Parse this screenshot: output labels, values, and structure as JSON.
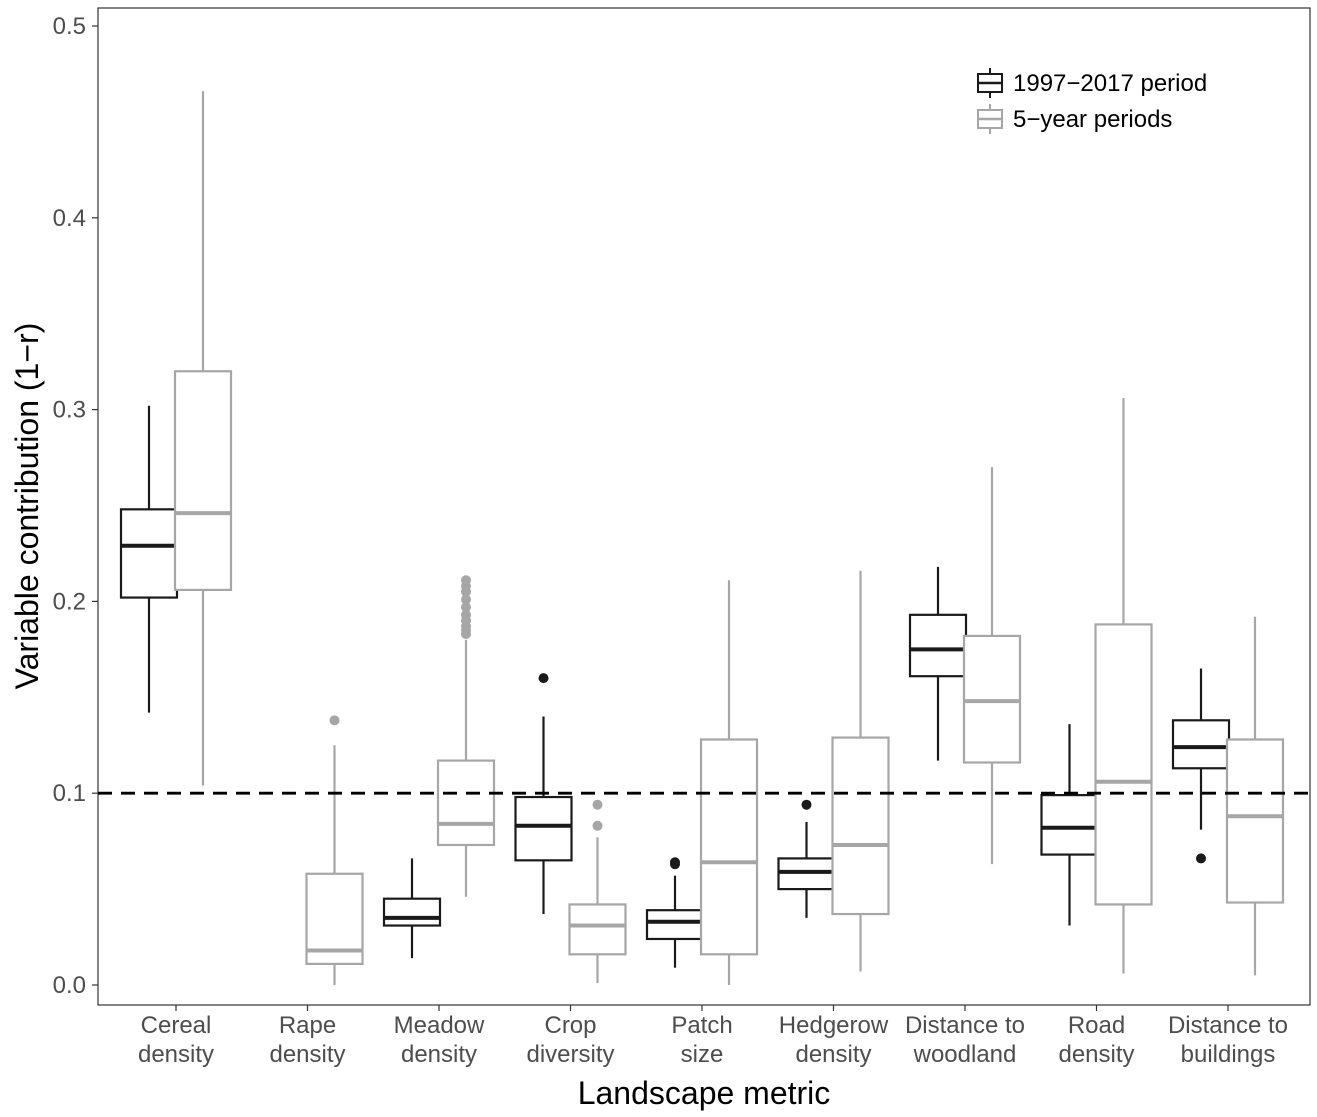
{
  "chart_data": {
    "type": "boxplot",
    "xlabel": "Landscape metric",
    "ylabel": "Variable contribution (1−r)",
    "ylim": [
      -0.01,
      0.51
    ],
    "yticks": [
      "0.0",
      "0.1",
      "0.2",
      "0.3",
      "0.4",
      "0.5"
    ],
    "grid": false,
    "legend_position": "top-right",
    "reference_line": {
      "y": 0.1,
      "style": "dashed",
      "color": "#000000"
    },
    "categories": [
      [
        "Cereal",
        "density"
      ],
      [
        "Rape",
        "density"
      ],
      [
        "Meadow",
        "density"
      ],
      [
        "Crop",
        "diversity"
      ],
      [
        "Patch",
        "size"
      ],
      [
        "Hedgerow",
        "density"
      ],
      [
        "Distance to",
        "woodland"
      ],
      [
        "Road",
        "density"
      ],
      [
        "Distance to",
        "buildings"
      ]
    ],
    "series": [
      {
        "name": "1997−2017 period",
        "color": "#1a1a1a",
        "boxes": [
          {
            "min": 0.142,
            "q1": 0.202,
            "median": 0.229,
            "q3": 0.248,
            "max": 0.302,
            "outliers": []
          },
          null,
          {
            "min": 0.014,
            "q1": 0.031,
            "median": 0.035,
            "q3": 0.045,
            "max": 0.066,
            "outliers": []
          },
          {
            "min": 0.037,
            "q1": 0.065,
            "median": 0.083,
            "q3": 0.098,
            "max": 0.14,
            "outliers": [
              0.16
            ]
          },
          {
            "min": 0.009,
            "q1": 0.024,
            "median": 0.033,
            "q3": 0.039,
            "max": 0.057,
            "outliers": [
              0.063,
              0.064
            ]
          },
          {
            "min": 0.035,
            "q1": 0.05,
            "median": 0.059,
            "q3": 0.066,
            "max": 0.085,
            "outliers": [
              0.094
            ]
          },
          {
            "min": 0.117,
            "q1": 0.161,
            "median": 0.175,
            "q3": 0.193,
            "max": 0.218,
            "outliers": []
          },
          {
            "min": 0.031,
            "q1": 0.068,
            "median": 0.082,
            "q3": 0.099,
            "max": 0.136,
            "outliers": []
          },
          {
            "min": 0.081,
            "q1": 0.113,
            "median": 0.124,
            "q3": 0.138,
            "max": 0.165,
            "outliers": [
              0.066
            ]
          }
        ]
      },
      {
        "name": "5−year periods",
        "color": "#a6a6a6",
        "boxes": [
          {
            "min": 0.104,
            "q1": 0.206,
            "median": 0.246,
            "q3": 0.32,
            "max": 0.466,
            "outliers": []
          },
          {
            "min": 0.0,
            "q1": 0.011,
            "median": 0.018,
            "q3": 0.058,
            "max": 0.125,
            "outliers": [
              0.138
            ]
          },
          {
            "min": 0.046,
            "q1": 0.073,
            "median": 0.084,
            "q3": 0.117,
            "max": 0.18,
            "outliers": [
              0.183,
              0.185,
              0.187,
              0.19,
              0.193,
              0.197,
              0.201,
              0.205,
              0.208,
              0.211
            ]
          },
          {
            "min": 0.001,
            "q1": 0.016,
            "median": 0.031,
            "q3": 0.042,
            "max": 0.077,
            "outliers": [
              0.083,
              0.094
            ]
          },
          {
            "min": 0.0,
            "q1": 0.016,
            "median": 0.064,
            "q3": 0.128,
            "max": 0.211,
            "outliers": []
          },
          {
            "min": 0.007,
            "q1": 0.037,
            "median": 0.073,
            "q3": 0.129,
            "max": 0.216,
            "outliers": []
          },
          {
            "min": 0.063,
            "q1": 0.116,
            "median": 0.148,
            "q3": 0.182,
            "max": 0.27,
            "outliers": []
          },
          {
            "min": 0.006,
            "q1": 0.042,
            "median": 0.106,
            "q3": 0.188,
            "max": 0.306,
            "outliers": []
          },
          {
            "min": 0.005,
            "q1": 0.043,
            "median": 0.088,
            "q3": 0.128,
            "max": 0.192,
            "outliers": []
          }
        ]
      }
    ]
  }
}
